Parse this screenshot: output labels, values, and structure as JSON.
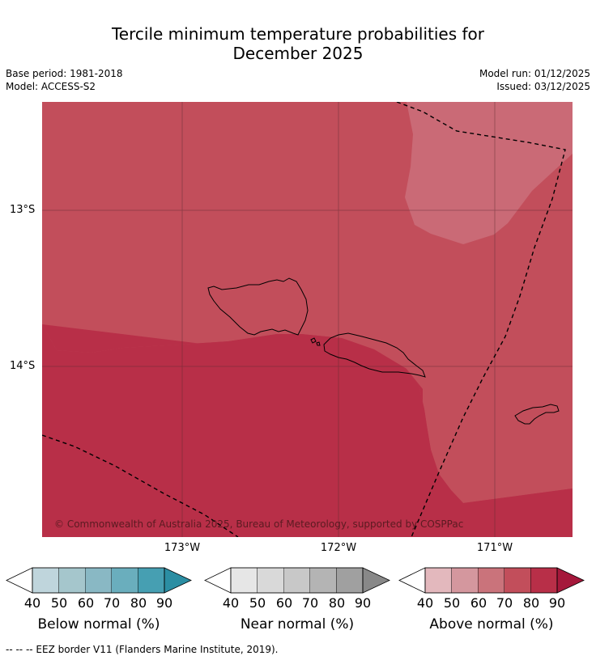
{
  "header": {
    "title_line1": "Tercile minimum temperature probabilities for",
    "title_line2": "December 2025",
    "base_period": "Base period: 1981-2018",
    "model": "Model: ACCESS-S2",
    "model_run": "Model run: 01/12/2025",
    "issued": "Issued: 03/12/2025"
  },
  "map": {
    "lat_labels": [
      "13°S",
      "14°S"
    ],
    "lon_labels": [
      "173°W",
      "172°W",
      "171°W"
    ],
    "copyright": "© Commonwealth of Australia 2025, Bureau of Meteorology, supported by COSPPac",
    "region_categories": {
      "upper_region": "Above normal 70-80%",
      "lower_region": "Above normal 80-90%",
      "northeast_patch": "Above normal 60-70%"
    },
    "features": [
      "Savai'i",
      "Upolu",
      "Tutuila",
      "EEZ border"
    ]
  },
  "colorbars": [
    {
      "name": "Below normal (%)",
      "ticks": [
        "40",
        "50",
        "60",
        "70",
        "80",
        "90"
      ],
      "colors": [
        "#ffffff",
        "#bfd5dc",
        "#a5c6cc",
        "#89b8c4",
        "#6aaebd",
        "#469fb2",
        "#2b8ea3"
      ]
    },
    {
      "name": "Near normal (%)",
      "ticks": [
        "40",
        "50",
        "60",
        "70",
        "80",
        "90"
      ],
      "colors": [
        "#ffffff",
        "#e6e6e6",
        "#d9d9d9",
        "#c8c8c8",
        "#b4b4b4",
        "#a0a0a0",
        "#888888"
      ]
    },
    {
      "name": "Above normal (%)",
      "ticks": [
        "40",
        "50",
        "60",
        "70",
        "80",
        "90"
      ],
      "colors": [
        "#ffffff",
        "#e3b8bd",
        "#d4979e",
        "#ca737b",
        "#c24e5b",
        "#b82f48",
        "#a5183b"
      ]
    }
  ],
  "footer": {
    "legend_text": "--  --  -- EEZ border V11 (Flanders Marine Institute, 2019)."
  }
}
